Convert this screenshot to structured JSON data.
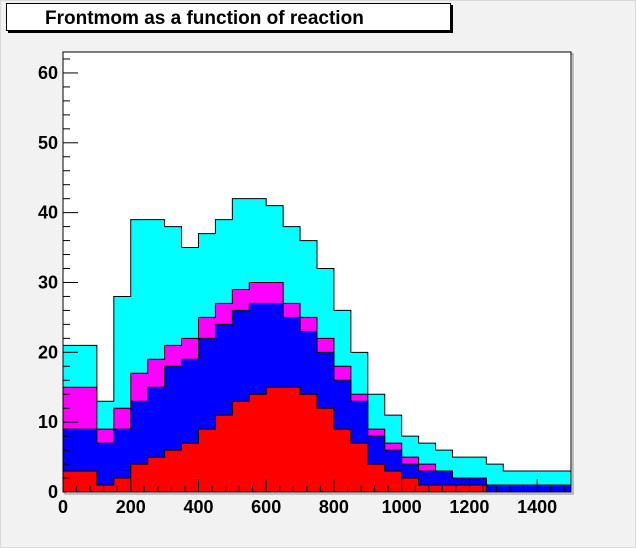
{
  "title": "Frontmom as a function of reaction",
  "chart_data": {
    "type": "area",
    "title": "Frontmom as a function of reaction",
    "xlabel": "",
    "ylabel": "",
    "xlim": [
      0,
      1500
    ],
    "ylim": [
      0,
      63
    ],
    "xticks": [
      0,
      200,
      400,
      600,
      800,
      1000,
      1200,
      1400
    ],
    "yticks": [
      0,
      10,
      20,
      30,
      40,
      50,
      60
    ],
    "stacked": true,
    "grid": false,
    "legend": "none",
    "x": [
      0,
      100,
      150,
      200,
      250,
      300,
      350,
      400,
      450,
      500,
      550,
      600,
      650,
      700,
      750,
      800,
      850,
      900,
      950,
      1000,
      1050,
      1100,
      1150,
      1200,
      1250,
      1300,
      1350,
      1400,
      1450,
      1500
    ],
    "series": [
      {
        "color": "#ff0000",
        "values": [
          3,
          1,
          2,
          4,
          5,
          6,
          7,
          9,
          11,
          13,
          14,
          15,
          15,
          14,
          12,
          9,
          7,
          4,
          3,
          2,
          1,
          1,
          1,
          1,
          0,
          0,
          0,
          0,
          0,
          0
        ]
      },
      {
        "color": "#0000ff",
        "values": [
          6,
          6,
          7,
          9,
          10,
          12,
          12,
          13,
          13,
          13,
          13,
          12,
          10,
          9,
          8,
          7,
          6,
          4,
          3,
          2,
          2,
          2,
          1,
          1,
          1,
          1,
          1,
          1,
          1,
          0
        ]
      },
      {
        "color": "#ff00ff",
        "values": [
          6,
          2,
          3,
          4,
          4,
          3,
          3,
          3,
          3,
          3,
          3,
          3,
          2,
          2,
          2,
          2,
          1,
          1,
          1,
          1,
          1,
          0,
          0,
          0,
          0,
          0,
          0,
          0,
          0,
          0
        ]
      },
      {
        "color": "#00ffff",
        "values": [
          6,
          4,
          16,
          22,
          20,
          17,
          13,
          12,
          12,
          13,
          12,
          11,
          11,
          11,
          10,
          8,
          6,
          5,
          4,
          3,
          3,
          3,
          3,
          3,
          3,
          2,
          2,
          2,
          2,
          1
        ]
      }
    ]
  }
}
